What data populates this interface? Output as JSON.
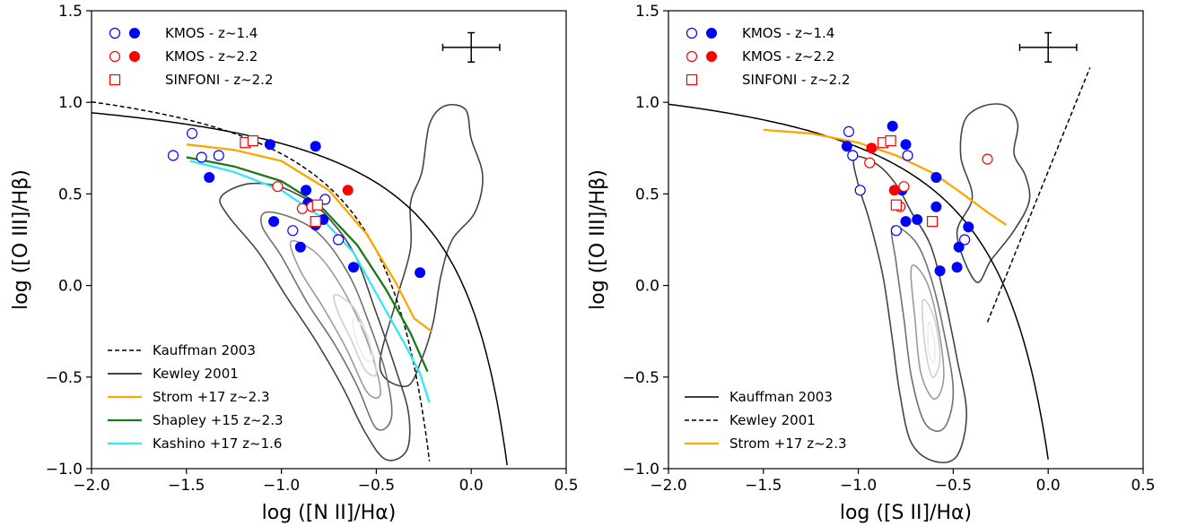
{
  "chart_data": [
    {
      "type": "scatter",
      "xlabel": "log ([N II]/Hα)",
      "ylabel": "log ([O III]/Hβ)",
      "xlim": [
        -2.0,
        0.5
      ],
      "ylim": [
        -1.0,
        1.5
      ],
      "xticks": [
        "−2.0",
        "−1.5",
        "−1.0",
        "−0.5",
        "0.0",
        "0.5"
      ],
      "yticks": [
        "−1.0",
        "−0.5",
        "0.0",
        "0.5",
        "1.0",
        "1.5"
      ],
      "error_bar": {
        "x": 0.0,
        "y": 1.3,
        "xerr": 0.15,
        "yerr": 0.08
      },
      "point_legend": [
        {
          "label": "KMOS - z~1.4",
          "markers": [
            "open-circle-blue",
            "filled-circle-blue"
          ]
        },
        {
          "label": "KMOS - z~2.2",
          "markers": [
            "open-circle-red",
            "filled-circle-red"
          ]
        },
        {
          "label": "SINFONI - z~2.2",
          "markers": [
            "open-square-red"
          ]
        }
      ],
      "line_legend": [
        {
          "label": "Kauffman 2003",
          "color": "#000000",
          "style": "dashed"
        },
        {
          "label": "Kewley 2001",
          "color": "#000000",
          "style": "solid"
        },
        {
          "label": "Strom +17  z~2.3",
          "color": "#ffa500",
          "style": "solid"
        },
        {
          "label": "Shapley +15  z~2.3",
          "color": "#1a7a1a",
          "style": "solid"
        },
        {
          "label": "Kashino +17  z~1.6",
          "color": "#33e6f2",
          "style": "solid"
        }
      ],
      "series": [
        {
          "name": "KMOS - z~1.4",
          "marker": "open-circle",
          "color": "#0000ff",
          "x": [
            -1.47,
            -1.57,
            -1.42,
            -1.33,
            -0.94,
            -0.77,
            -0.7
          ],
          "y": [
            0.83,
            0.71,
            0.7,
            0.71,
            0.3,
            0.47,
            0.25
          ]
        },
        {
          "name": "KMOS - z~1.4",
          "marker": "filled-circle",
          "color": "#0000ff",
          "x": [
            -1.38,
            -1.06,
            -1.04,
            -0.82,
            -0.87,
            -0.86,
            -0.82,
            -0.78,
            -0.9,
            -0.62,
            -0.27
          ],
          "y": [
            0.59,
            0.77,
            0.35,
            0.76,
            0.52,
            0.45,
            0.33,
            0.36,
            0.21,
            0.1,
            0.07
          ]
        },
        {
          "name": "KMOS - z~2.2",
          "marker": "open-circle",
          "color": "#ff0000",
          "x": [
            -1.02,
            -0.89,
            -0.84
          ],
          "y": [
            0.54,
            0.42,
            0.43
          ]
        },
        {
          "name": "KMOS - z~2.2",
          "marker": "filled-circle",
          "color": "#ff0000",
          "x": [
            -0.65
          ],
          "y": [
            0.52
          ]
        },
        {
          "name": "SINFONI - z~2.2",
          "marker": "open-square",
          "color": "#ff0000",
          "x": [
            -1.19,
            -1.15,
            -0.81,
            -0.82
          ],
          "y": [
            0.78,
            0.79,
            0.44,
            0.35
          ]
        }
      ]
    },
    {
      "type": "scatter",
      "xlabel": "log ([S II]/Hα)",
      "ylabel": "log ([O III]/Hβ)",
      "xlim": [
        -2.0,
        0.5
      ],
      "ylim": [
        -1.0,
        1.5
      ],
      "xticks": [
        "−2.0",
        "−1.5",
        "−1.0",
        "−0.5",
        "0.0",
        "0.5"
      ],
      "yticks": [
        "−1.0",
        "−0.5",
        "0.0",
        "0.5",
        "1.0",
        "1.5"
      ],
      "error_bar": {
        "x": 0.0,
        "y": 1.3,
        "xerr": 0.15,
        "yerr": 0.08
      },
      "point_legend": [
        {
          "label": "KMOS - z~1.4",
          "markers": [
            "open-circle-blue",
            "filled-circle-blue"
          ]
        },
        {
          "label": "KMOS - z~2.2",
          "markers": [
            "open-circle-red",
            "filled-circle-red"
          ]
        },
        {
          "label": "SINFONI - z~2.2",
          "markers": [
            "open-square-red"
          ]
        }
      ],
      "line_legend": [
        {
          "label": "Kauffman 2003",
          "color": "#000000",
          "style": "solid"
        },
        {
          "label": "Kewley 2001",
          "color": "#000000",
          "style": "dashed"
        },
        {
          "label": "Strom +17  z~2.3",
          "color": "#ffa500",
          "style": "solid"
        }
      ],
      "series": [
        {
          "name": "KMOS - z~1.4",
          "marker": "open-circle",
          "color": "#0000ff",
          "x": [
            -1.05,
            -1.03,
            -0.99,
            -0.74,
            -0.8,
            -0.44
          ],
          "y": [
            0.84,
            0.71,
            0.52,
            0.71,
            0.3,
            0.25
          ]
        },
        {
          "name": "KMOS - z~1.4",
          "marker": "filled-circle",
          "color": "#0000ff",
          "x": [
            -1.06,
            -0.82,
            -0.75,
            -0.77,
            -0.75,
            -0.69,
            -0.59,
            -0.59,
            -0.42,
            -0.47,
            -0.48,
            -0.57
          ],
          "y": [
            0.76,
            0.87,
            0.77,
            0.52,
            0.35,
            0.36,
            0.59,
            0.43,
            0.32,
            0.21,
            0.1,
            0.08
          ]
        },
        {
          "name": "KMOS - z~2.2",
          "marker": "open-circle",
          "color": "#ff0000",
          "x": [
            -0.94,
            -0.76,
            -0.78,
            -0.32
          ],
          "y": [
            0.67,
            0.54,
            0.43,
            0.69
          ]
        },
        {
          "name": "KMOS - z~2.2",
          "marker": "filled-circle",
          "color": "#ff0000",
          "x": [
            -0.93,
            -0.81
          ],
          "y": [
            0.75,
            0.52
          ]
        },
        {
          "name": "SINFONI - z~2.2",
          "marker": "open-square",
          "color": "#ff0000",
          "x": [
            -0.87,
            -0.83,
            -0.8,
            -0.61
          ],
          "y": [
            0.78,
            0.79,
            0.44,
            0.35
          ]
        }
      ]
    }
  ]
}
